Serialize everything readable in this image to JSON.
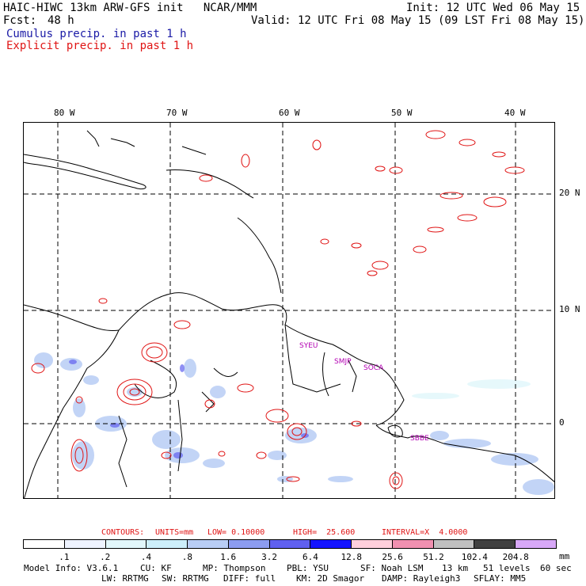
{
  "header": {
    "line1_left": "HAIC-HIWC 13km ARW-GFS init   NCAR/MMM",
    "line1_right": "Init: 12 UTC Wed 06 May 15",
    "fcst_label": "Fcst:",
    "fcst_value": "48 h",
    "valid": "Valid: 12 UTC Fri 08 May 15 (09 LST Fri 08 May 15)",
    "cumulus": "Cumulus precip. in past 1 h",
    "explicit": "Explicit precip. in past 1 h"
  },
  "map": {
    "lon_labels": [
      "80 W",
      "70 W",
      "60 W",
      "50 W",
      "40 W"
    ],
    "lat_labels": [
      "20 N",
      "10 N",
      "0"
    ],
    "stations": [
      "SYEU",
      "SMJP",
      "SOCA",
      "SBBE"
    ]
  },
  "contours": {
    "label": "CONTOURS:",
    "units": "UNITS=mm",
    "low": "LOW= 0.10000",
    "high": "HIGH=  25.600",
    "interval": "INTERVAL=X  4.0000"
  },
  "colorbar": {
    "levels": [
      ".1",
      ".2",
      ".4",
      ".8",
      "1.6",
      "3.2",
      "6.4",
      "12.8",
      "25.6",
      "51.2",
      "102.4",
      "204.8"
    ],
    "unit": "mm",
    "colors": [
      "#ffffff",
      "#eef3ff",
      "#e2f7fb",
      "#cdeffb",
      "#b8cdf5",
      "#8c9cf0",
      "#6060f0",
      "#1414ff",
      "#ffd0dc",
      "#f090b0",
      "#c0c0c0",
      "#404040",
      "#d8a8f8"
    ]
  },
  "footer": {
    "model_info": "Model Info: V3.6.1",
    "cu": "CU: KF",
    "mp": "MP: Thompson",
    "pbl": "PBL: YSU",
    "sf": "SF: Noah LSM",
    "res": "13 km",
    "levels": "51 levels",
    "dt": "60 sec",
    "lw": "LW: RRTMG",
    "sw": "SW: RRTMG",
    "diff": "DIFF: full",
    "km": "KM: 2D Smagor",
    "damp": "DAMP: Rayleigh3",
    "sflay": "SFLAY: MM5"
  }
}
